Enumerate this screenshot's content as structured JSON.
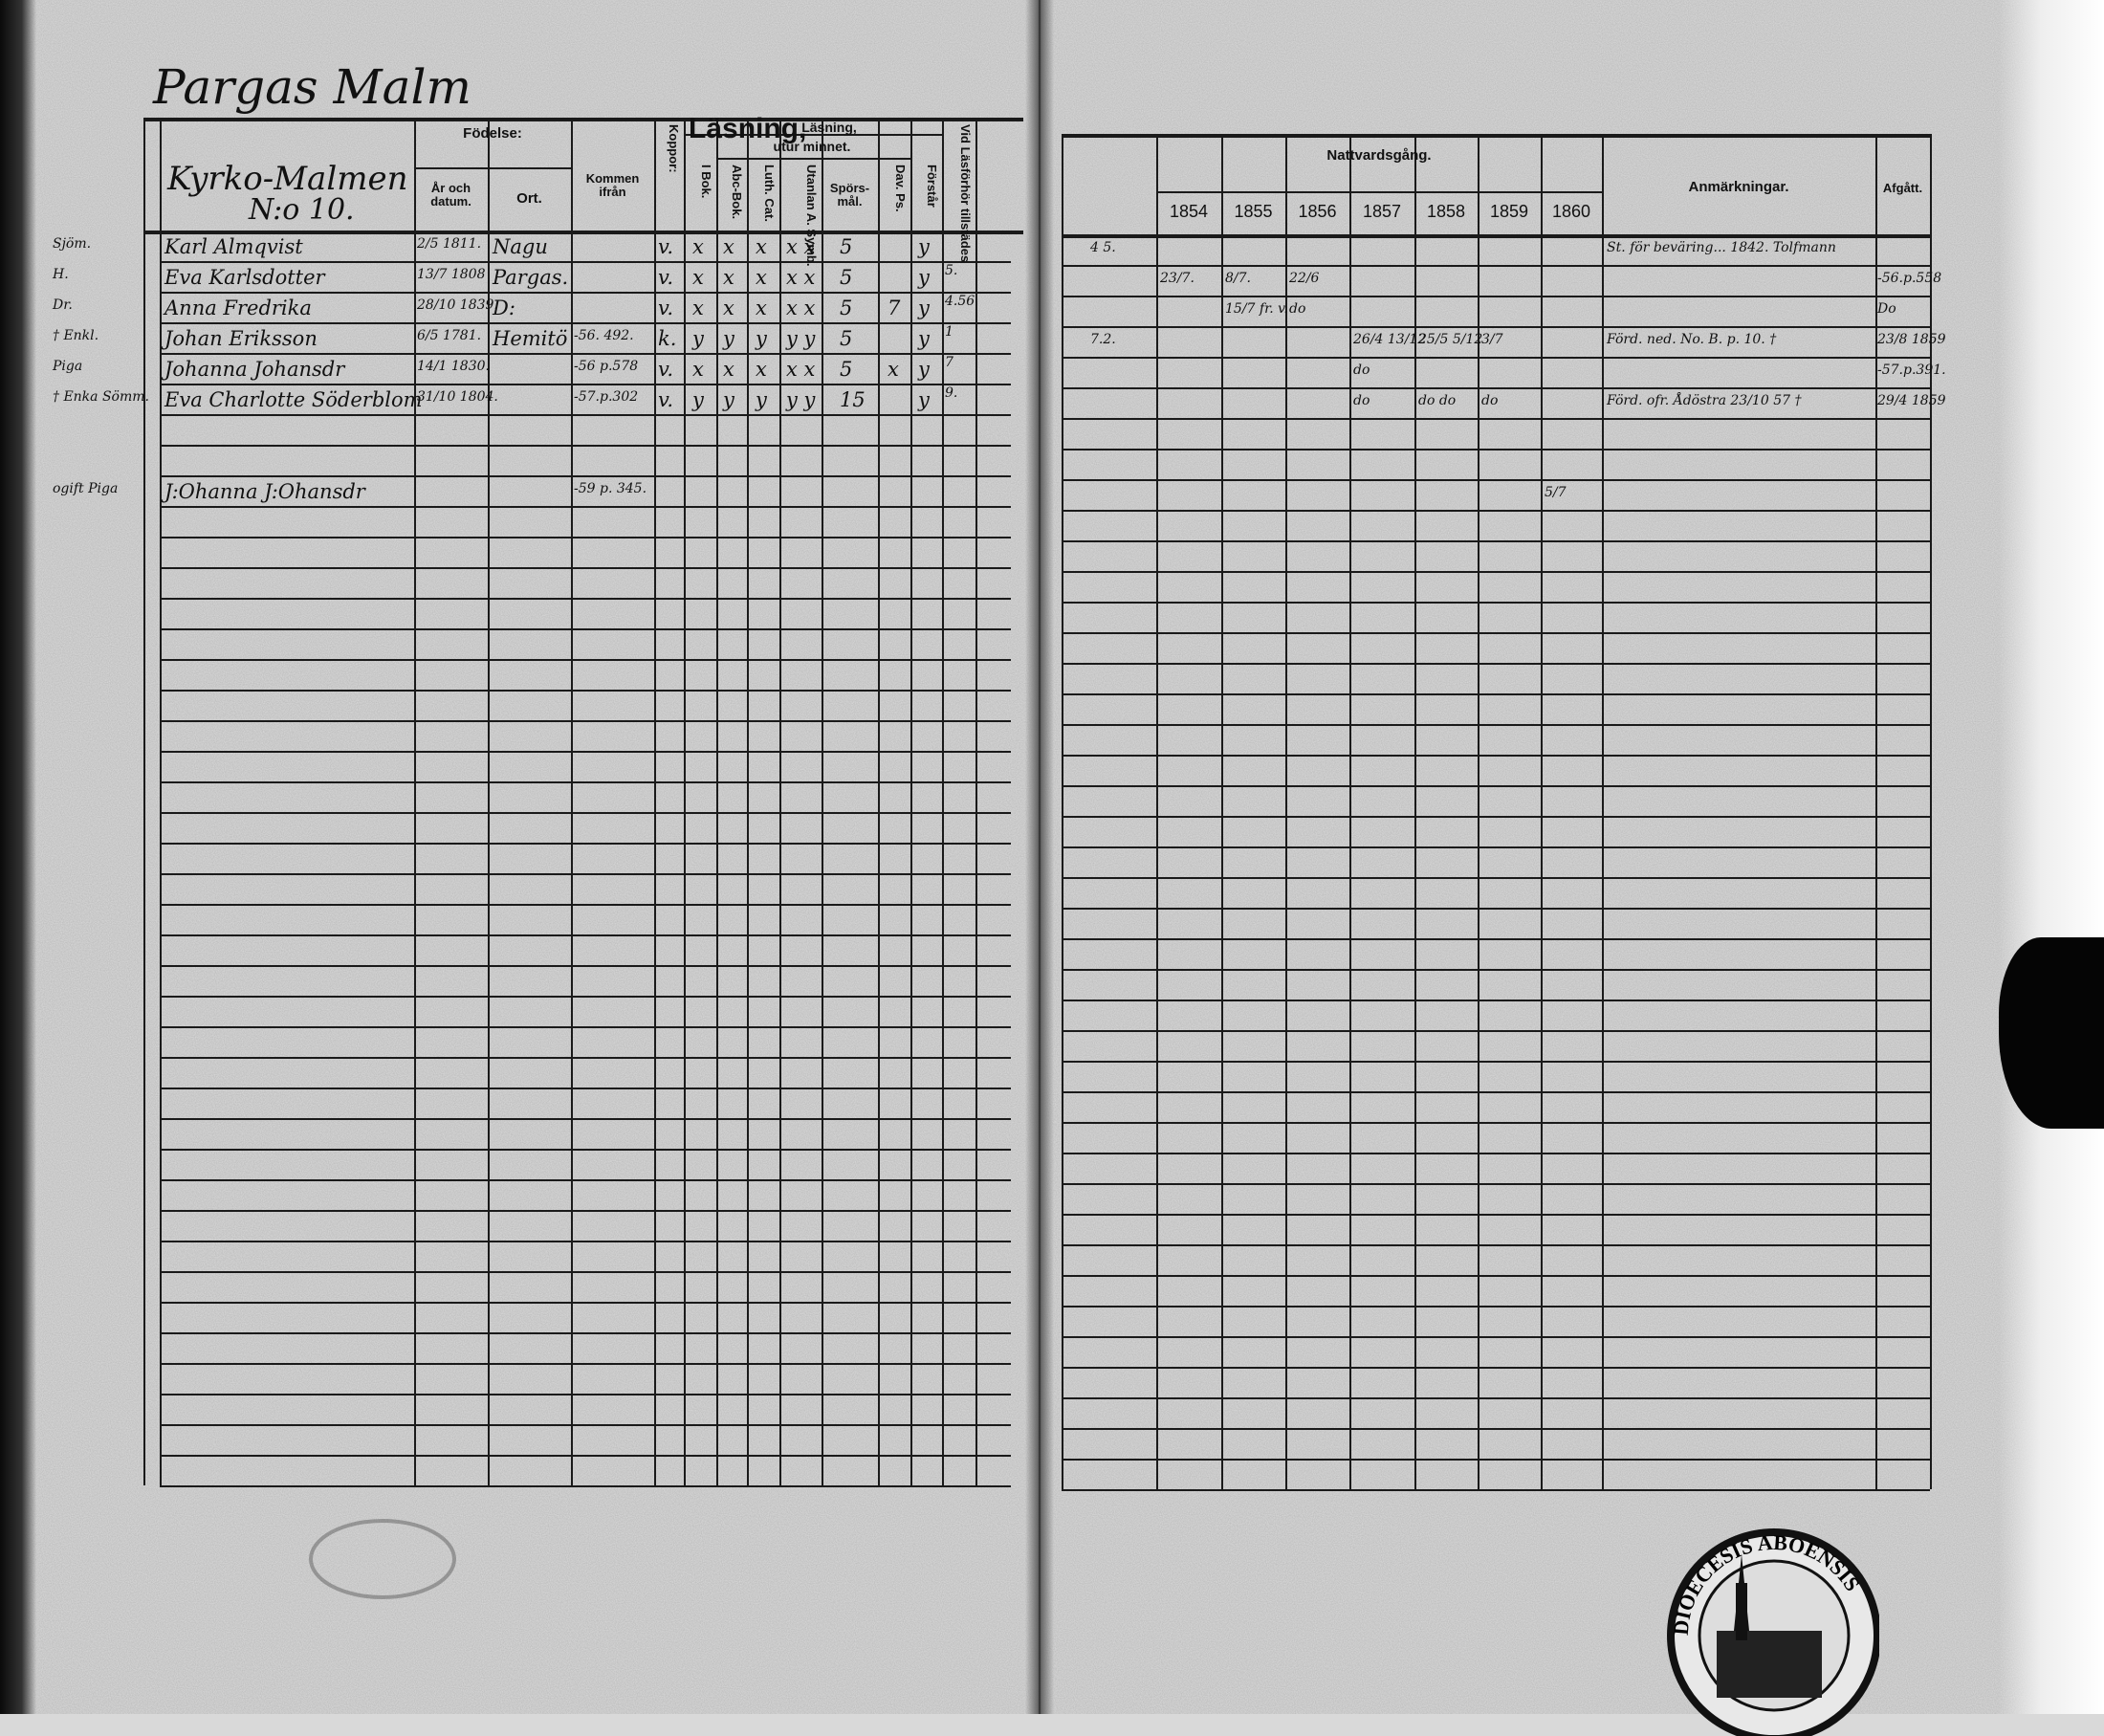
{
  "page_title": "Pargas Malm",
  "section": {
    "place": "Kyrko-Malmen",
    "number": "N:o 10."
  },
  "left_headers": {
    "fodelse": "Födelse:",
    "ar": "År och datum.",
    "ort": "Ort.",
    "kommen": "Kommen ifrån",
    "koppor": "Koppor:",
    "lasning": "Läsning,",
    "utur_minnet": "utur minnet.",
    "bok": "I Bok.",
    "abc": "Abc-Bok.",
    "luth": "Luth. Cat.",
    "utanlan": "Utanlan A. Symb.",
    "spors": "Spörs-mål.",
    "dav": "Dav. Ps.",
    "forstar": "Förstår",
    "vid": "Vid Läsförhör tillstädes"
  },
  "right_headers": {
    "nattvard": "Nattvardsgång.",
    "years": [
      "1854",
      "1855",
      "1856",
      "1857",
      "1858",
      "1859",
      "1860"
    ],
    "anm": "Anmärkningar.",
    "afgatt": "Afgått."
  },
  "rows": [
    {
      "margin": "Sjöm.",
      "name": "Karl Almqvist",
      "date": "2/5 1811.",
      "ort": "Nagu",
      "kommen": "",
      "koppor": "v.",
      "bok": "x",
      "abc": "x",
      "luth": "x",
      "utan": "x x",
      "spors": "5",
      "dav": "",
      "forstar": "y",
      "vid": "",
      "side": "4 5.",
      "years": [
        "",
        "",
        "",
        "",
        "",
        "",
        ""
      ],
      "anm": "St. för beväring... 1842. Tolfmann",
      "afgatt": ""
    },
    {
      "margin": "H.",
      "name": "Eva Karlsdotter",
      "date": "13/7 1808",
      "ort": "Pargas.",
      "kommen": "",
      "koppor": "v.",
      "bok": "x",
      "abc": "x",
      "luth": "x",
      "utan": "x x",
      "spors": "5",
      "dav": "",
      "forstar": "y",
      "vid": "5.",
      "side": "",
      "years": [
        "23/7.",
        "8/7.",
        "22/6",
        "",
        "",
        "",
        ""
      ],
      "anm": "",
      "afgatt": "-56.p.558"
    },
    {
      "margin": "Dr.",
      "name": "Anna Fredrika",
      "date": "28/10 1839.",
      "ort": "D:",
      "kommen": "",
      "koppor": "v.",
      "bok": "x",
      "abc": "x",
      "luth": "x",
      "utan": "x x",
      "spors": "5",
      "dav": "7",
      "forstar": "y",
      "vid": "4.56",
      "side": "",
      "years": [
        "",
        "15/7 fr. v.",
        "do",
        "",
        "",
        "",
        ""
      ],
      "anm": "",
      "afgatt": "Do"
    },
    {
      "margin": "† Enkl.",
      "name": "Johan Eriksson",
      "date": "6/5 1781.",
      "ort": "Hemitö",
      "kommen": "-56. 492.",
      "koppor": "k.",
      "bok": "y",
      "abc": "y",
      "luth": "y",
      "utan": "y y",
      "spors": "5",
      "dav": "",
      "forstar": "y",
      "vid": "1",
      "side": "7.2.",
      "years": [
        "",
        "",
        "",
        "26/4 13/12",
        "25/5 5/12",
        "3/7",
        ""
      ],
      "anm": "Förd. ned. No. B. p. 10.  †",
      "afgatt": "23/8 1859"
    },
    {
      "margin": "Piga",
      "name": "Johanna Johansdr",
      "date": "14/1 1830.",
      "ort": "",
      "kommen": "-56 p.578",
      "koppor": "v.",
      "bok": "x",
      "abc": "x",
      "luth": "x",
      "utan": "x x",
      "spors": "5",
      "dav": "x",
      "forstar": "y",
      "vid": "7",
      "side": "",
      "years": [
        "",
        "",
        "",
        "do",
        "",
        "",
        ""
      ],
      "anm": "",
      "afgatt": "-57.p.391."
    },
    {
      "margin": "† Enka Sömm.",
      "name": "Eva Charlotte Söderblom",
      "date": "31/10 1804.",
      "ort": "",
      "kommen": "-57.p.302",
      "koppor": "v.",
      "bok": "y",
      "abc": "y",
      "luth": "y",
      "utan": "y y",
      "spors": "15",
      "dav": "",
      "forstar": "y",
      "vid": "9.",
      "side": "",
      "years": [
        "",
        "",
        "",
        "do",
        "do do",
        "do",
        ""
      ],
      "anm": "Förd. ofr. Ådöstra 23/10 57 †",
      "afgatt": "29/4 1859"
    },
    {
      "margin": "",
      "name": "",
      "date": "",
      "ort": "",
      "kommen": "",
      "koppor": "",
      "bok": "",
      "abc": "",
      "luth": "",
      "utan": "",
      "spors": "",
      "dav": "",
      "forstar": "",
      "vid": "",
      "side": "",
      "years": [
        "",
        "",
        "",
        "",
        "",
        "",
        ""
      ],
      "anm": "",
      "afgatt": ""
    },
    {
      "margin": "",
      "name": "",
      "date": "",
      "ort": "",
      "kommen": "",
      "koppor": "",
      "bok": "",
      "abc": "",
      "luth": "",
      "utan": "",
      "spors": "",
      "dav": "",
      "forstar": "",
      "vid": "",
      "side": "",
      "years": [
        "",
        "",
        "",
        "",
        "",
        "",
        ""
      ],
      "anm": "",
      "afgatt": ""
    },
    {
      "margin": "ogift  Piga",
      "name": "J:Ohanna J:Ohansdr",
      "date": "",
      "ort": "",
      "kommen": "-59 p. 345.",
      "koppor": "",
      "bok": "",
      "abc": "",
      "luth": "",
      "utan": "",
      "spors": "",
      "dav": "",
      "forstar": "",
      "vid": "",
      "side": "",
      "years": [
        "",
        "",
        "",
        "",
        "",
        "",
        "5/7"
      ],
      "anm": "",
      "afgatt": ""
    }
  ],
  "seal_text": "DIOECESIS ABOENSIS",
  "colors": {
    "paper": "#d9d9d9",
    "ink": "#111111"
  }
}
